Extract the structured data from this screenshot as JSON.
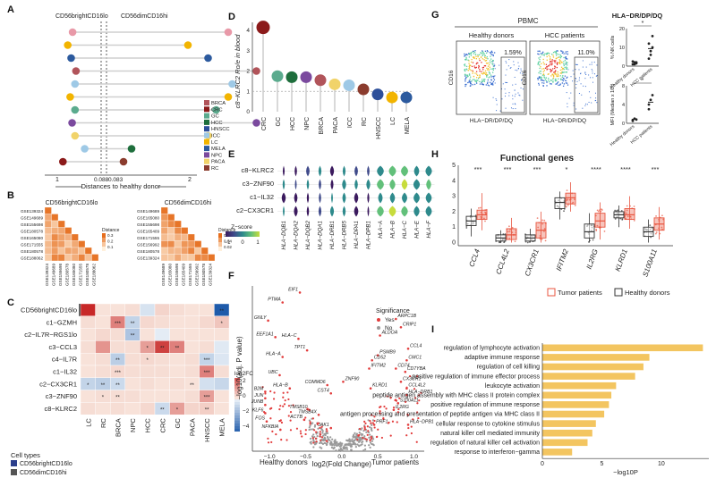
{
  "panels": [
    "A",
    "B",
    "C",
    "D",
    "E",
    "F",
    "G",
    "H",
    "I"
  ],
  "colors": {
    "BRCA": "#b1545a",
    "CRC": "#8b1a1a",
    "GC": "#5bab8e",
    "HCC": "#1e6e3c",
    "HNSCC": "#2d4f9a",
    "ICC": "#9ec9e6",
    "LC": "#f2b400",
    "MELA": "#2c5a9e",
    "NPC": "#7b4a9e",
    "PACA": "#f1d36a",
    "RC": "#8b3c2e",
    "tumor": "#e8553f",
    "healthy": "#333333",
    "gold": "#f3c560"
  },
  "panel_a": {
    "left_header": "CD56brightCD16lo",
    "right_header": "CD56dimCD16hi",
    "dividers": [
      "0.088",
      "0.083"
    ],
    "axis_ticks": [
      "1",
      "2"
    ],
    "axis_label": "Distances to healthy donor",
    "legend": [
      "BRCA",
      "CRC",
      "GC",
      "HCC",
      "HNSCC",
      "ICC",
      "LC",
      "MELA",
      "NPC",
      "PACA",
      "RC"
    ],
    "rows": [
      {
        "left": 0.35,
        "lcol": "#e899a8",
        "right": 1.5,
        "rcol": "#e899a8"
      },
      {
        "left": 0.45,
        "lcol": "#f2b400",
        "right": 1.0,
        "rcol": "#f2b400"
      },
      {
        "left": 0.38,
        "lcol": "#2c5a9e",
        "right": 1.25,
        "rcol": "#2c5a9e"
      },
      {
        "left": 0.28,
        "lcol": "#b1545a",
        "right": 1.85,
        "rcol": "#b1545a"
      },
      {
        "left": 0.3,
        "lcol": "#9ec9e6",
        "right": 1.55,
        "rcol": "#9ec9e6"
      },
      {
        "left": 0.4,
        "lcol": "#f2b400",
        "right": 1.5,
        "rcol": "#f2b400"
      },
      {
        "left": 0.3,
        "lcol": "#5bab8e",
        "right": 1.35,
        "rcol": "#5bab8e"
      },
      {
        "left": 0.36,
        "lcol": "#7b4a9e",
        "right": 1.85,
        "rcol": "#7b4a9e"
      },
      {
        "left": 0.3,
        "lcol": "#f1d36a",
        "right": 1.25,
        "rcol": "#f1d36a"
      },
      {
        "left": 0.1,
        "lcol": "#9ec9e6",
        "right": 0.3,
        "rcol": "#1e6e3c"
      },
      {
        "left": 0.55,
        "lcol": "#8b1a1a",
        "right": 0.2,
        "rcol": "#8b3c2e"
      }
    ]
  },
  "panel_b": {
    "left_title": "CD56brightCD16lo",
    "right_title": "CD56dimCD16hi",
    "left_ids": [
      "GSE139324",
      "GSE149689",
      "GSE155698",
      "GSE180578",
      "GSE165080",
      "GSE171555",
      "GSE180578",
      "GSE188062"
    ],
    "right_ids": [
      "GSE149689",
      "GSE165080",
      "GSE155698",
      "GSE165409",
      "GSE171555",
      "GSE156992",
      "GSE180578",
      "GSE139324"
    ],
    "legend_title": "Distance",
    "legend_left": [
      "0.3",
      "0.2",
      "0.1"
    ],
    "legend_right": [
      "0.06",
      "0.04",
      "0.02"
    ]
  },
  "panel_c": {
    "rows": [
      "CD56brightCD16lo",
      "c1−GZMH",
      "c2−IL7R−RGS1lo",
      "c3−CCL3",
      "c4−IL7R",
      "c1−IL32",
      "c2−CX3CR1",
      "c3−ZNF90",
      "c8−KLRC2"
    ],
    "cols": [
      "LC",
      "RC",
      "BRCA",
      "NPC",
      "HCC",
      "CRC",
      "GC",
      "PACA",
      "HNSCC",
      "MELA"
    ],
    "legend_title": "log2FC",
    "legend_ticks": [
      "2",
      "0",
      "−2",
      "−4"
    ],
    "cell_types_title": "Cell types",
    "cell_types": [
      "CD56brightCD16lo",
      "CD56dimCD16hi"
    ],
    "values": [
      [
        4,
        0.2,
        0.2,
        0.3,
        -0.5,
        0.5,
        0.3,
        0.2,
        0.2,
        -5
      ],
      [
        0.3,
        0.2,
        2.2,
        -1,
        0.4,
        0.3,
        0.2,
        0.2,
        0.4,
        0.8
      ],
      [
        0.2,
        0.4,
        0.3,
        -1.5,
        0.2,
        -0.2,
        0.2,
        0.2,
        0.2,
        0.2
      ],
      [
        0.3,
        1.8,
        0.3,
        0.3,
        1.6,
        3.5,
        2.2,
        0.2,
        0.3,
        -0.3
      ],
      [
        0.2,
        0.3,
        -1.2,
        0.3,
        0.4,
        0.3,
        0.2,
        0.3,
        -1,
        -0.4
      ],
      [
        0.2,
        0.3,
        0.4,
        0.3,
        0.3,
        0.3,
        0.2,
        0.3,
        2.2,
        0.3
      ],
      [
        -1,
        -1.2,
        -0.8,
        0.2,
        0.3,
        0.2,
        0.3,
        0.2,
        -0.6,
        -0.9
      ],
      [
        0.2,
        0.3,
        0.3,
        0.3,
        0.2,
        0.2,
        0.2,
        0.3,
        1.6,
        0.2
      ],
      [
        0.3,
        0.2,
        0.3,
        0.2,
        0.4,
        -0.8,
        1.6,
        0.5,
        0.6,
        0.2
      ]
    ],
    "stars": [
      [
        "",
        "",
        "",
        "",
        "",
        "",
        "",
        "",
        "",
        "**"
      ],
      [
        "",
        "",
        "***",
        "**",
        "",
        "",
        "",
        "",
        "",
        "*"
      ],
      [
        "",
        "",
        "",
        "**",
        "",
        "",
        "",
        "",
        "",
        ""
      ],
      [
        "",
        "",
        "",
        "",
        "*",
        "**",
        "**",
        "",
        "",
        ""
      ],
      [
        "",
        "",
        "**",
        "",
        "*",
        "",
        "",
        "",
        "***",
        ""
      ],
      [
        "",
        "",
        "***",
        "",
        "",
        "",
        "",
        "",
        "***",
        ""
      ],
      [
        "*",
        "**",
        "**",
        "",
        "",
        "",
        "",
        "**",
        "",
        ""
      ],
      [
        "",
        "*",
        "**",
        "",
        "",
        "",
        "",
        "",
        "***",
        ""
      ],
      [
        "",
        "",
        "",
        "",
        "",
        "**",
        "*",
        "",
        "**",
        ""
      ]
    ]
  },
  "panel_d": {
    "ylabel": "c8−KLRC2 Ro/e in blood",
    "yticks": [
      "0",
      "1",
      "2",
      "3",
      "4"
    ],
    "chart_data": {
      "type": "lollipop",
      "categories": [
        "CRC",
        "GC",
        "HCC",
        "NPC",
        "BRCA",
        "PACA",
        "ICC",
        "RC",
        "HNSCC",
        "LC",
        "MELA"
      ],
      "values": [
        4.15,
        1.75,
        1.7,
        1.7,
        1.55,
        1.35,
        1.3,
        1.1,
        0.85,
        0.7,
        0.7
      ],
      "ylim": [
        0,
        4.4
      ],
      "reference_line": 1
    }
  },
  "panel_e": {
    "rows": [
      "c8−KLRC2",
      "c3−ZNF90",
      "c1−IL32",
      "c2−CX3CR1"
    ],
    "genes": [
      "HLA−DQB1",
      "HLA−DQA2",
      "HLA−DQB2",
      "HLA−DQA1",
      "HLA−DRB1",
      "HLA−DRB5",
      "HLA−DPA1",
      "HLA−DPB1",
      "HLA−A",
      "HLA−B",
      "HLA−C",
      "HLA−E",
      "HLA−F"
    ],
    "legend_title": "Z−score",
    "legend_ticks": [
      "−1",
      "0",
      "1"
    ]
  },
  "panel_f": {
    "ylabel": "−log10(adj. P value)",
    "xlabel": "log2(Fold Change)",
    "left_group": "Healthy donors",
    "right_group": "Tumor patients",
    "xticks": [
      "−1.0",
      "−0.5",
      "0.0",
      "0.5",
      "1.0"
    ],
    "legend_title": "Significance",
    "legend_items": [
      "Yes",
      "No"
    ],
    "gene_labels": [
      {
        "g": "EIF1",
        "x": -0.58,
        "y": 0.96
      },
      {
        "g": "PTMA",
        "x": -0.82,
        "y": 0.9
      },
      {
        "g": "GNLY",
        "x": -1.02,
        "y": 0.79
      },
      {
        "g": "EEF1A1",
        "x": -0.92,
        "y": 0.69
      },
      {
        "g": "HLA−C",
        "x": -0.6,
        "y": 0.68
      },
      {
        "g": "TPT1",
        "x": -0.48,
        "y": 0.61
      },
      {
        "g": "HLA−A",
        "x": -0.82,
        "y": 0.57
      },
      {
        "g": "UBC",
        "x": -0.86,
        "y": 0.46
      },
      {
        "g": "HLA−B",
        "x": -0.72,
        "y": 0.38
      },
      {
        "g": "B2M",
        "x": -1.06,
        "y": 0.36
      },
      {
        "g": "JUN",
        "x": -1.06,
        "y": 0.32
      },
      {
        "g": "JUNB",
        "x": -1.06,
        "y": 0.28
      },
      {
        "g": "KLF6",
        "x": -1.06,
        "y": 0.23
      },
      {
        "g": "FOS",
        "x": -1.04,
        "y": 0.18
      },
      {
        "g": "NFKBIA",
        "x": -0.85,
        "y": 0.13
      },
      {
        "g": "ACTB",
        "x": -0.52,
        "y": 0.19
      },
      {
        "g": "TMSB10",
        "x": -0.45,
        "y": 0.25
      },
      {
        "g": "TMSB4X",
        "x": -0.32,
        "y": 0.22
      },
      {
        "g": "CST4",
        "x": -0.15,
        "y": 0.35
      },
      {
        "g": "COMMD6",
        "x": -0.2,
        "y": 0.4
      },
      {
        "g": "ZNF90",
        "x": 0.02,
        "y": 0.42
      },
      {
        "g": "JAK1",
        "x": -0.15,
        "y": 0.14
      },
      {
        "g": "ARPC1B",
        "x": 0.75,
        "y": 0.8
      },
      {
        "g": "CRIP1",
        "x": 0.82,
        "y": 0.75
      },
      {
        "g": "ALDOA",
        "x": 0.53,
        "y": 0.7
      },
      {
        "g": "CCL4",
        "x": 0.92,
        "y": 0.62
      },
      {
        "g": "PSMB9",
        "x": 0.5,
        "y": 0.58
      },
      {
        "g": "CMC1",
        "x": 0.9,
        "y": 0.55
      },
      {
        "g": "IFITM2",
        "x": 0.38,
        "y": 0.5
      },
      {
        "g": "CD52",
        "x": 0.42,
        "y": 0.55
      },
      {
        "g": "CD74",
        "x": 0.75,
        "y": 0.5
      },
      {
        "g": "CD7YBA",
        "x": 0.88,
        "y": 0.48
      },
      {
        "g": "CX3CR1",
        "x": 0.82,
        "y": 0.42
      },
      {
        "g": "KLRD1",
        "x": 0.4,
        "y": 0.38
      },
      {
        "g": "CCL4L2",
        "x": 0.9,
        "y": 0.38
      },
      {
        "g": "HLA−DRB1",
        "x": 0.9,
        "y": 0.34
      },
      {
        "g": "S100A11",
        "x": 0.78,
        "y": 0.29
      },
      {
        "g": "IL2RG",
        "x": 0.72,
        "y": 0.25
      },
      {
        "g": "PRF1",
        "x": 0.45,
        "y": 0.16
      },
      {
        "g": "HLA−DPB1",
        "x": 0.92,
        "y": 0.16
      }
    ]
  },
  "panel_g": {
    "header": "PBMC",
    "left_title": "Healthy donors",
    "right_title": "HCC patients",
    "left_pct": "1.59%",
    "right_pct": "11.0%",
    "ylabel": "CD16",
    "xlabel": "HLA−DR/DP/DQ",
    "side_title": "HLA−DR/DP/DQ",
    "top_ylabel": "% NK cells",
    "bottom_ylabel": "MFI (Median x 10⁴)",
    "groups": [
      "Healthy donors",
      "HCC patients"
    ],
    "sig": "*",
    "top_chart": {
      "type": "scatter",
      "healthy": [
        1,
        2,
        1.5,
        2.5,
        1,
        2
      ],
      "hcc": [
        4,
        8,
        10,
        12,
        6,
        16
      ],
      "ylim": [
        0,
        20
      ],
      "ticks": [
        "0",
        "10",
        "20"
      ]
    },
    "bottom_chart": {
      "type": "scatter",
      "healthy": [
        0.5,
        1,
        0.8,
        0.7
      ],
      "hcc": [
        3,
        5,
        6,
        4
      ],
      "ylim": [
        0,
        8
      ],
      "ticks": [
        "0",
        "4",
        "8"
      ]
    }
  },
  "panel_h": {
    "title": "Functional genes",
    "genes": [
      "CCL4",
      "CCL4L2",
      "CX3CR1",
      "IFITM2",
      "IL2RG",
      "KLRD1",
      "S100A11"
    ],
    "sig": [
      "***",
      "***",
      "***",
      "*",
      "****",
      "****",
      "***"
    ],
    "yticks": [
      "0",
      "1",
      "2",
      "3",
      "4",
      "5"
    ],
    "legend": [
      "Tumor patients",
      "Healthy donors"
    ],
    "chart_data": {
      "type": "boxplot",
      "categories": [
        "CCL4",
        "CCL4L2",
        "CX3CR1",
        "IFITM2",
        "IL2RG",
        "KLRD1",
        "S100A11"
      ],
      "series": [
        {
          "name": "Healthy donors",
          "median": [
            1.4,
            0.3,
            0.3,
            2.6,
            0.7,
            1.8,
            0.7
          ],
          "q1": [
            1.1,
            0.1,
            0.1,
            2.2,
            0.3,
            1.6,
            0.4
          ],
          "q3": [
            1.7,
            0.5,
            0.5,
            2.9,
            1.2,
            2.0,
            1.0
          ],
          "min": [
            0.4,
            0,
            0,
            1.5,
            0,
            1.0,
            0
          ],
          "max": [
            2.2,
            0.8,
            0.9,
            3.3,
            1.9,
            2.4,
            1.5
          ]
        },
        {
          "name": "Tumor patients",
          "median": [
            1.8,
            0.5,
            0.8,
            2.9,
            1.4,
            1.8,
            1.2
          ],
          "q1": [
            1.5,
            0.2,
            0.3,
            2.5,
            1.0,
            1.5,
            0.8
          ],
          "q3": [
            2.1,
            0.9,
            1.3,
            3.2,
            1.9,
            2.2,
            1.6
          ],
          "min": [
            0.8,
            0,
            0,
            2.0,
            0.2,
            0.9,
            0.2
          ],
          "max": [
            3.2,
            1.6,
            2.0,
            3.9,
            2.6,
            3.0,
            2.3
          ]
        }
      ],
      "ylim": [
        -0.2,
        5
      ]
    }
  },
  "panel_i": {
    "xlabel": "−log10P",
    "xticks": [
      "0",
      "5",
      "10"
    ],
    "chart_data": {
      "type": "bar",
      "categories": [
        "regulation of lymphocyte activation",
        "adaptive immune response",
        "regulation of cell killing",
        "positive regulation of immune effector process",
        "leukocyte activation",
        "peptide antigen assembly with MHC class II protein complex",
        "positive regulation of immune response",
        "antigen processing and presentation of peptide antigen via MHC class II",
        "cellular response to cytokine stimulus",
        "natural killer cell mediated immunity",
        "regulation of natural killer cell activation",
        "response to interferon−gamma"
      ],
      "values": [
        13.5,
        9.0,
        8.5,
        7.8,
        6.2,
        5.8,
        5.6,
        5.2,
        4.5,
        4.2,
        3.8,
        2.5
      ],
      "xlim": [
        0,
        14
      ]
    }
  }
}
